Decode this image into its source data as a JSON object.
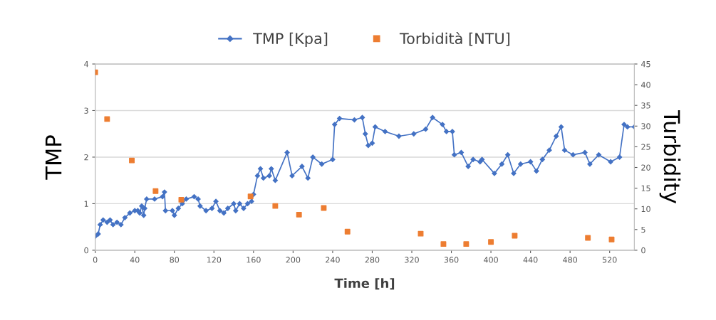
{
  "chart_data": {
    "type": "line",
    "xlabel": "Time [h]",
    "ylabel": "TMP",
    "y2label": "Turbidity",
    "xlim": [
      0,
      545
    ],
    "xticks": [
      0,
      40,
      80,
      120,
      160,
      200,
      240,
      280,
      320,
      360,
      400,
      440,
      480,
      520
    ],
    "ylim": [
      0,
      4
    ],
    "yticks": [
      0,
      1,
      2,
      3,
      4
    ],
    "y2lim": [
      0,
      45
    ],
    "y2ticks": [
      0,
      5,
      10,
      15,
      20,
      25,
      30,
      35,
      40,
      45
    ],
    "grid": "y",
    "legend": "top",
    "line_style": "solid",
    "series": [
      {
        "name": "TMP [Kpa]",
        "marker": "diamond",
        "color": "#4472c4",
        "x": [
          0,
          3,
          5,
          8,
          12,
          15,
          18,
          22,
          26,
          30,
          35,
          40,
          43,
          45,
          47,
          49,
          50,
          52,
          60,
          68,
          70,
          71,
          78,
          80,
          84,
          88,
          92,
          100,
          104,
          106,
          112,
          118,
          122,
          126,
          130,
          134,
          140,
          142,
          146,
          150,
          154,
          158,
          160,
          164,
          167,
          170,
          176,
          178,
          182,
          194,
          199,
          209,
          215,
          220,
          229,
          240,
          242,
          247,
          262,
          270,
          273,
          276,
          280,
          283,
          293,
          307,
          322,
          334,
          341,
          351,
          355,
          361,
          363,
          370,
          377,
          382,
          389,
          391,
          403.5,
          411,
          417,
          423,
          430,
          440,
          446,
          452,
          459,
          466,
          471,
          474.5,
          483,
          495,
          500,
          509,
          521,
          530,
          534.6,
          538,
          545
        ],
        "values": [
          0.3,
          0.35,
          0.55,
          0.65,
          0.6,
          0.65,
          0.55,
          0.6,
          0.55,
          0.7,
          0.8,
          0.85,
          0.85,
          0.8,
          0.95,
          0.75,
          0.9,
          1.1,
          1.1,
          1.15,
          1.25,
          0.85,
          0.85,
          0.75,
          0.9,
          1.0,
          1.1,
          1.15,
          1.1,
          0.95,
          0.85,
          0.9,
          1.05,
          0.85,
          0.8,
          0.9,
          1.0,
          0.85,
          1.0,
          0.9,
          1.0,
          1.05,
          1.2,
          1.6,
          1.75,
          1.55,
          1.6,
          1.75,
          1.5,
          2.1,
          1.6,
          1.8,
          1.55,
          2.0,
          1.85,
          1.95,
          2.7,
          2.83,
          2.8,
          2.85,
          2.5,
          2.25,
          2.3,
          2.65,
          2.55,
          2.45,
          2.5,
          2.6,
          2.85,
          2.7,
          2.55,
          2.55,
          2.05,
          2.1,
          1.8,
          1.95,
          1.9,
          1.95,
          1.65,
          1.85,
          2.05,
          1.65,
          1.85,
          1.9,
          1.7,
          1.95,
          2.15,
          2.45,
          2.65,
          2.15,
          2.05,
          2.1,
          1.85,
          2.05,
          1.9,
          2.0,
          2.7,
          2.65,
          2.65
        ]
      },
      {
        "name": "Torbidità [NTU]",
        "type": "scatter",
        "marker": "square",
        "color": "#ed7d31",
        "axis": "y2",
        "x": [
          0,
          12,
          37,
          61,
          87,
          157,
          182,
          206,
          231,
          255,
          329,
          352,
          375,
          400,
          424,
          498,
          522
        ],
        "values": [
          43,
          31.7,
          21.7,
          14.3,
          12.2,
          13,
          10.7,
          8.6,
          10.2,
          4.5,
          4,
          1.5,
          1.5,
          2,
          3.5,
          3,
          2.6
        ]
      }
    ]
  }
}
